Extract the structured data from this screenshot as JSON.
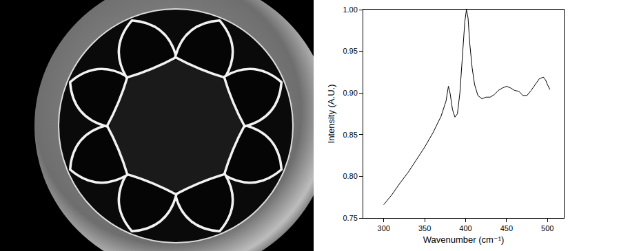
{
  "chart_data": {
    "type": "line",
    "xlabel": "Wavenumber (cm⁻¹)",
    "ylabel": "Intensity (A.U.)",
    "x": [
      300,
      310,
      320,
      330,
      340,
      350,
      360,
      370,
      376,
      379,
      381,
      384,
      387,
      390,
      393,
      396,
      399,
      401,
      403,
      405,
      408,
      411,
      415,
      420,
      425,
      430,
      435,
      440,
      445,
      450,
      455,
      460,
      465,
      470,
      475,
      480,
      485,
      490,
      495,
      498,
      500,
      503
    ],
    "values": [
      0.766,
      0.778,
      0.792,
      0.805,
      0.82,
      0.835,
      0.852,
      0.872,
      0.89,
      0.908,
      0.9,
      0.88,
      0.871,
      0.875,
      0.9,
      0.94,
      0.985,
      1.0,
      0.99,
      0.96,
      0.93,
      0.91,
      0.897,
      0.893,
      0.895,
      0.895,
      0.898,
      0.903,
      0.906,
      0.908,
      0.906,
      0.903,
      0.902,
      0.897,
      0.897,
      0.903,
      0.91,
      0.917,
      0.919,
      0.915,
      0.91,
      0.904
    ],
    "color": "#000000",
    "xlim": [
      275,
      520
    ],
    "xticks": [
      300,
      350,
      400,
      450,
      500
    ],
    "ylim": [
      0.75,
      1.0
    ],
    "yticks": [
      0.75,
      {
        "value": 0.8,
        "label": "0.80"
      },
      0.85,
      {
        "value": 0.9,
        "label": "0.90"
      },
      0.95,
      {
        "value": 1.0,
        "label": "1.00"
      }
    ],
    "grid": false
  }
}
